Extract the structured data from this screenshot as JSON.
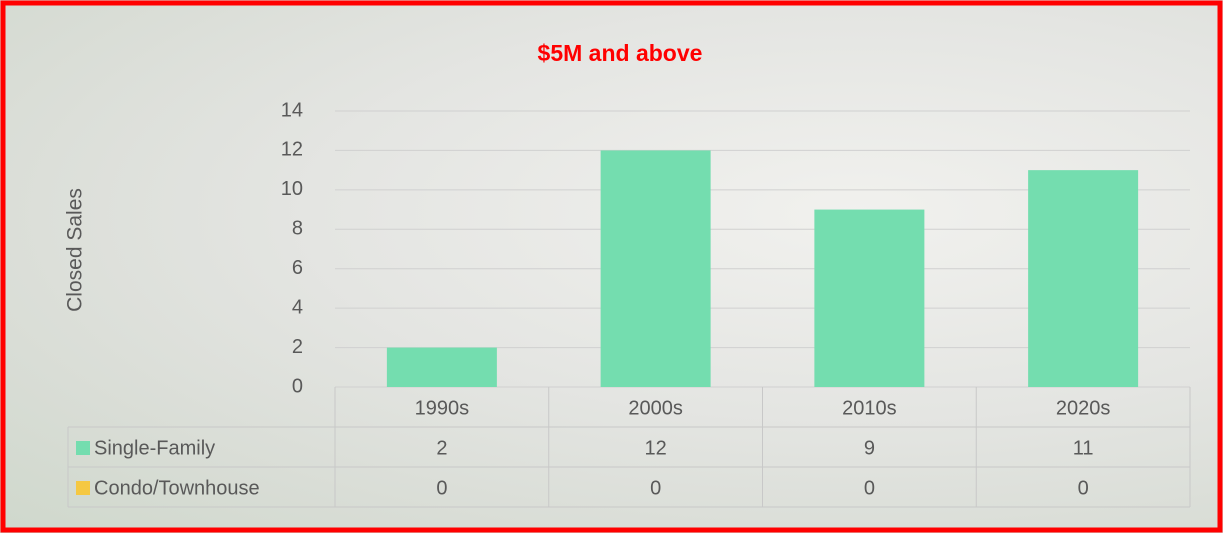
{
  "chart_data": {
    "type": "bar",
    "stacked": true,
    "title": "$5M and above",
    "y_label": "Closed Sales",
    "categories": [
      "1990s",
      "2000s",
      "2010s",
      "2020s"
    ],
    "series": [
      {
        "name": "Single-Family",
        "color": "#74ddaf",
        "values": [
          2,
          12,
          9,
          11
        ]
      },
      {
        "name": "Condo/Townhouse",
        "color": "#f5c842",
        "values": [
          0,
          0,
          0,
          0
        ]
      }
    ],
    "ylim": [
      0,
      14
    ],
    "yticks": [
      0,
      2,
      4,
      6,
      8,
      10,
      12,
      14
    ],
    "grid": true,
    "data_table": true
  }
}
